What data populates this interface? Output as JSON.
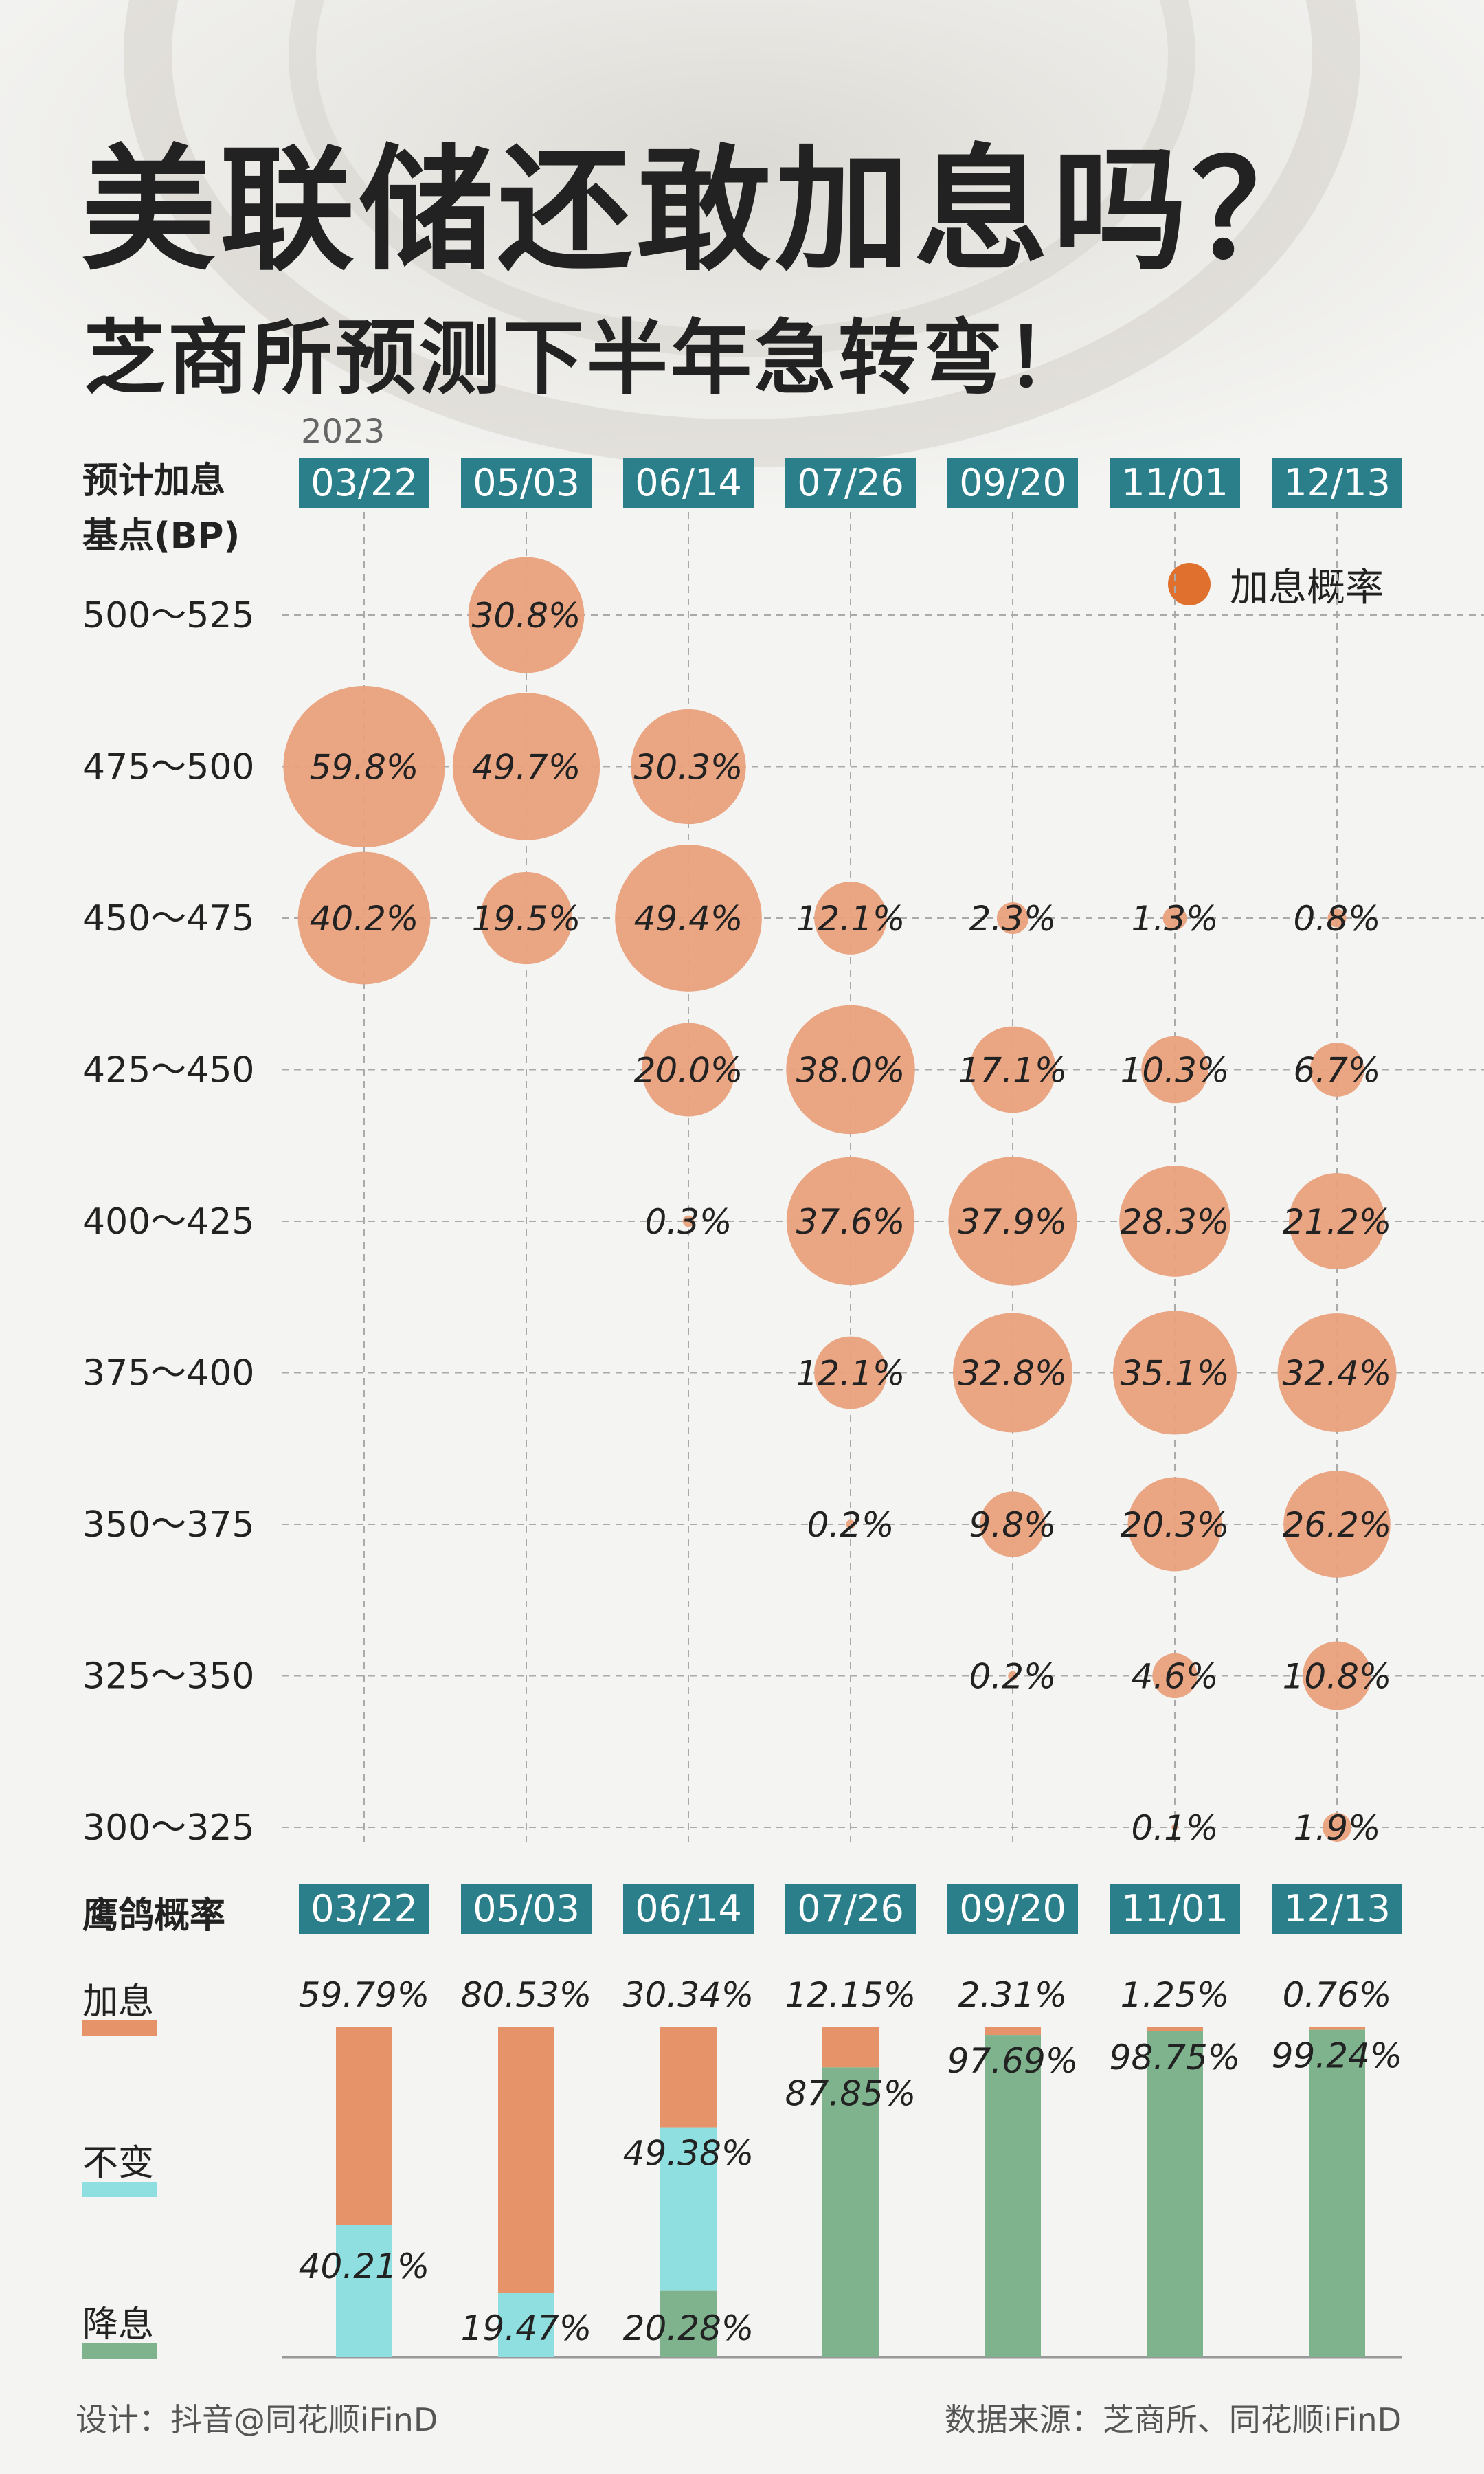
{
  "title": "美联储还敢加息吗？",
  "subtitle": "芝商所预测下半年急转弯！",
  "year": "2023",
  "colors": {
    "header_box": "#2a7f8a",
    "hike": "#e0702d",
    "bubble": "#e9a07c",
    "bar_hike": "#e6936a",
    "bar_hold": "#8fdfe0",
    "bar_hold_bright": "#4fe3e6",
    "bar_cut": "#7fb38e",
    "grid": "#aaaaaa"
  },
  "chart_data": [
    {
      "type": "scatter",
      "subtype": "bubble",
      "ylabel_lines": [
        "预计加息",
        "基点(BP)"
      ],
      "legend": [
        "加息概率"
      ],
      "legend_position": "top-right",
      "dates": [
        "03/22",
        "05/03",
        "06/14",
        "07/26",
        "09/20",
        "11/01",
        "12/13"
      ],
      "ranges": [
        "500～525",
        "475～500",
        "450～475",
        "425～450",
        "400～425",
        "375～400",
        "350～375",
        "325～350",
        "300～325"
      ],
      "points": [
        {
          "date": "03/22",
          "range": "475～500",
          "value": 59.8,
          "label": "59.8%"
        },
        {
          "date": "03/22",
          "range": "450～475",
          "value": 40.2,
          "label": "40.2%"
        },
        {
          "date": "05/03",
          "range": "500～525",
          "value": 30.8,
          "label": "30.8%"
        },
        {
          "date": "05/03",
          "range": "475～500",
          "value": 49.7,
          "label": "49.7%"
        },
        {
          "date": "05/03",
          "range": "450～475",
          "value": 19.5,
          "label": "19.5%"
        },
        {
          "date": "06/14",
          "range": "475～500",
          "value": 30.3,
          "label": "30.3%"
        },
        {
          "date": "06/14",
          "range": "450～475",
          "value": 49.4,
          "label": "49.4%"
        },
        {
          "date": "06/14",
          "range": "425～450",
          "value": 20.0,
          "label": "20.0%"
        },
        {
          "date": "06/14",
          "range": "400～425",
          "value": 0.3,
          "label": "0.3%"
        },
        {
          "date": "07/26",
          "range": "450～475",
          "value": 12.1,
          "label": "12.1%"
        },
        {
          "date": "07/26",
          "range": "425～450",
          "value": 38.0,
          "label": "38.0%"
        },
        {
          "date": "07/26",
          "range": "400～425",
          "value": 37.6,
          "label": "37.6%"
        },
        {
          "date": "07/26",
          "range": "375～400",
          "value": 12.1,
          "label": "12.1%"
        },
        {
          "date": "07/26",
          "range": "350～375",
          "value": 0.2,
          "label": "0.2%"
        },
        {
          "date": "09/20",
          "range": "450～475",
          "value": 2.3,
          "label": "2.3%"
        },
        {
          "date": "09/20",
          "range": "425～450",
          "value": 17.1,
          "label": "17.1%"
        },
        {
          "date": "09/20",
          "range": "400～425",
          "value": 37.9,
          "label": "37.9%"
        },
        {
          "date": "09/20",
          "range": "375～400",
          "value": 32.8,
          "label": "32.8%"
        },
        {
          "date": "09/20",
          "range": "350～375",
          "value": 9.8,
          "label": "9.8%"
        },
        {
          "date": "09/20",
          "range": "325～350",
          "value": 0.2,
          "label": "0.2%"
        },
        {
          "date": "11/01",
          "range": "450～475",
          "value": 1.3,
          "label": "1.3%"
        },
        {
          "date": "11/01",
          "range": "425～450",
          "value": 10.3,
          "label": "10.3%"
        },
        {
          "date": "11/01",
          "range": "400～425",
          "value": 28.3,
          "label": "28.3%"
        },
        {
          "date": "11/01",
          "range": "375～400",
          "value": 35.1,
          "label": "35.1%"
        },
        {
          "date": "11/01",
          "range": "350～375",
          "value": 20.3,
          "label": "20.3%"
        },
        {
          "date": "11/01",
          "range": "325～350",
          "value": 4.6,
          "label": "4.6%"
        },
        {
          "date": "11/01",
          "range": "300～325",
          "value": 0.1,
          "label": "0.1%"
        },
        {
          "date": "12/13",
          "range": "450～475",
          "value": 0.8,
          "label": "0.8%"
        },
        {
          "date": "12/13",
          "range": "425～450",
          "value": 6.7,
          "label": "6.7%"
        },
        {
          "date": "12/13",
          "range": "400～425",
          "value": 21.2,
          "label": "21.2%"
        },
        {
          "date": "12/13",
          "range": "375～400",
          "value": 32.4,
          "label": "32.4%"
        },
        {
          "date": "12/13",
          "range": "350～375",
          "value": 26.2,
          "label": "26.2%"
        },
        {
          "date": "12/13",
          "range": "325～350",
          "value": 10.8,
          "label": "10.8%"
        },
        {
          "date": "12/13",
          "range": "300～325",
          "value": 1.9,
          "label": "1.9%"
        }
      ],
      "grid": true
    },
    {
      "type": "bar",
      "subtype": "stacked-100",
      "title": "鹰鸽概率",
      "categories": [
        "03/22",
        "05/03",
        "06/14",
        "07/26",
        "09/20",
        "11/01",
        "12/13"
      ],
      "series": [
        {
          "name": "加息",
          "values": [
            59.79,
            80.53,
            30.34,
            12.15,
            2.31,
            1.25,
            0.76
          ],
          "labels": [
            "59.79%",
            "80.53%",
            "30.34%",
            "12.15%",
            "2.31%",
            "1.25%",
            "0.76%"
          ]
        },
        {
          "name": "不变",
          "values": [
            40.21,
            19.47,
            49.38,
            0,
            0,
            0,
            0
          ],
          "labels": [
            "40.21%",
            "19.47%",
            "49.38%",
            "",
            "",
            "",
            ""
          ]
        },
        {
          "name": "降息",
          "values": [
            0,
            0,
            20.28,
            87.85,
            97.69,
            98.75,
            99.24
          ],
          "labels": [
            "",
            "",
            "20.28%",
            "87.85%",
            "97.69%",
            "98.75%",
            "99.24%"
          ]
        }
      ],
      "ylim": [
        0,
        100
      ]
    }
  ],
  "footer": {
    "designer": "设计：抖音@同花顺iFinD",
    "source": "数据来源：芝商所、同花顺iFinD"
  }
}
